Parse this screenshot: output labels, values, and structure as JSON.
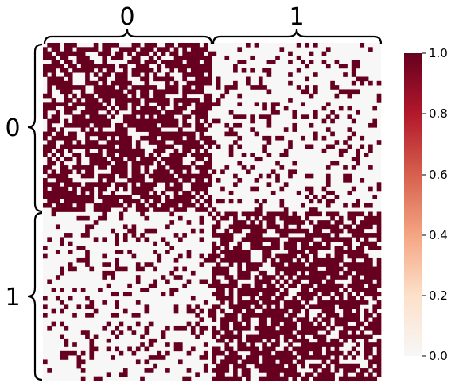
{
  "chart_data": {
    "type": "heatmap",
    "title": "",
    "xlabel": "",
    "ylabel": "",
    "block_labels_x": [
      "0",
      "1"
    ],
    "block_labels_y": [
      "0",
      "1"
    ],
    "matrix_size": 80,
    "block_size": 40,
    "value_range": [
      0,
      1
    ],
    "within_block_density": 0.7,
    "between_block_density": 0.18,
    "diagonal_value": 0,
    "colorbar": {
      "ticks": [
        "0.0",
        "0.2",
        "0.4",
        "0.6",
        "0.8",
        "1.0"
      ],
      "low_color": "#f7f7f7",
      "high_color": "#67001f"
    },
    "legend_placement": "right",
    "grid": false
  }
}
